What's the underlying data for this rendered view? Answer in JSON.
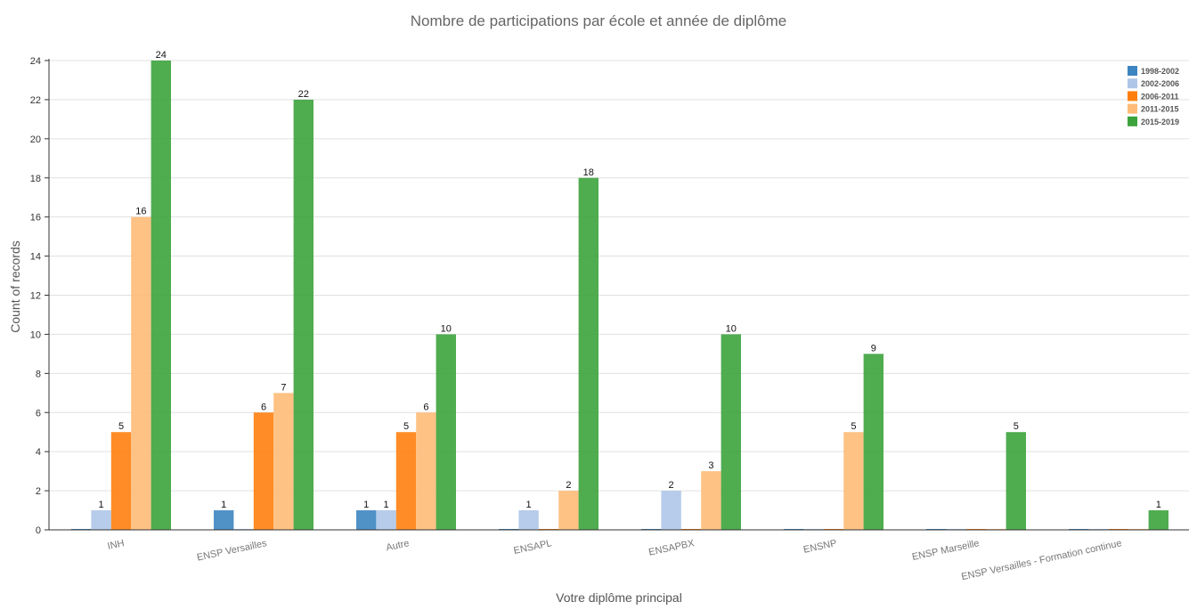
{
  "chart_data": {
    "type": "bar",
    "title": "Nombre de participations par école et année de diplôme",
    "xlabel": "Votre diplôme principal",
    "ylabel": "Count of records",
    "ylim": [
      0,
      24
    ],
    "yticks": [
      0,
      2,
      4,
      6,
      8,
      10,
      12,
      14,
      16,
      18,
      20,
      22,
      24
    ],
    "grid": true,
    "legend_position": "top-right",
    "categories": [
      "INH",
      "ENSP Versailles",
      "Autre",
      "ENSAPL",
      "ENSAPBX",
      "ENSNP",
      "ENSP Marseille",
      "ENSP Versailles - Formation continue"
    ],
    "series": [
      {
        "name": "1998-2002",
        "color": "#3d85c0",
        "values": [
          0,
          1,
          1,
          0,
          0,
          0,
          0,
          0
        ]
      },
      {
        "name": "2002-2006",
        "color": "#aec7e8",
        "values": [
          1,
          0,
          1,
          1,
          2,
          0,
          0,
          0
        ]
      },
      {
        "name": "2006-2011",
        "color": "#ff7f0e",
        "values": [
          5,
          6,
          5,
          0,
          0,
          0,
          0,
          0
        ]
      },
      {
        "name": "2011-2015",
        "color": "#ffbb78",
        "values": [
          16,
          7,
          6,
          2,
          3,
          5,
          0,
          0
        ]
      },
      {
        "name": "2015-2019",
        "color": "#3ca33c",
        "values": [
          24,
          22,
          10,
          18,
          10,
          9,
          5,
          1
        ]
      }
    ]
  }
}
